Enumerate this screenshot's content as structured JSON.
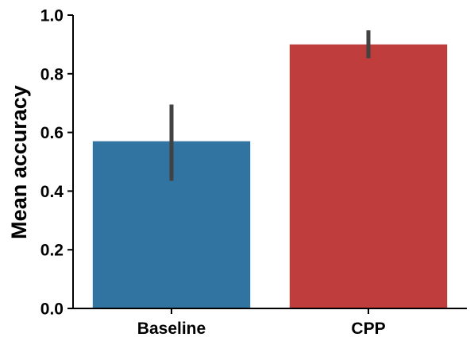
{
  "chart_data": {
    "type": "bar",
    "title": "",
    "xlabel": "",
    "ylabel": "Mean accuracy",
    "categories": [
      "Baseline",
      "CPP"
    ],
    "values": [
      0.57,
      0.9
    ],
    "error_bars": [
      {
        "low": 0.435,
        "high": 0.695
      },
      {
        "low": 0.853,
        "high": 0.948
      }
    ],
    "colors": [
      "#3274a1",
      "#c03d3e"
    ],
    "error_bar_color": "#424242",
    "ylim": [
      0,
      1.0
    ],
    "yticks": [
      0.0,
      0.2,
      0.4,
      0.6,
      0.8,
      1.0
    ],
    "ytick_labels": [
      "0.0",
      "0.2",
      "0.4",
      "0.6",
      "0.8",
      "1.0"
    ],
    "grid": false,
    "legend": "none"
  }
}
